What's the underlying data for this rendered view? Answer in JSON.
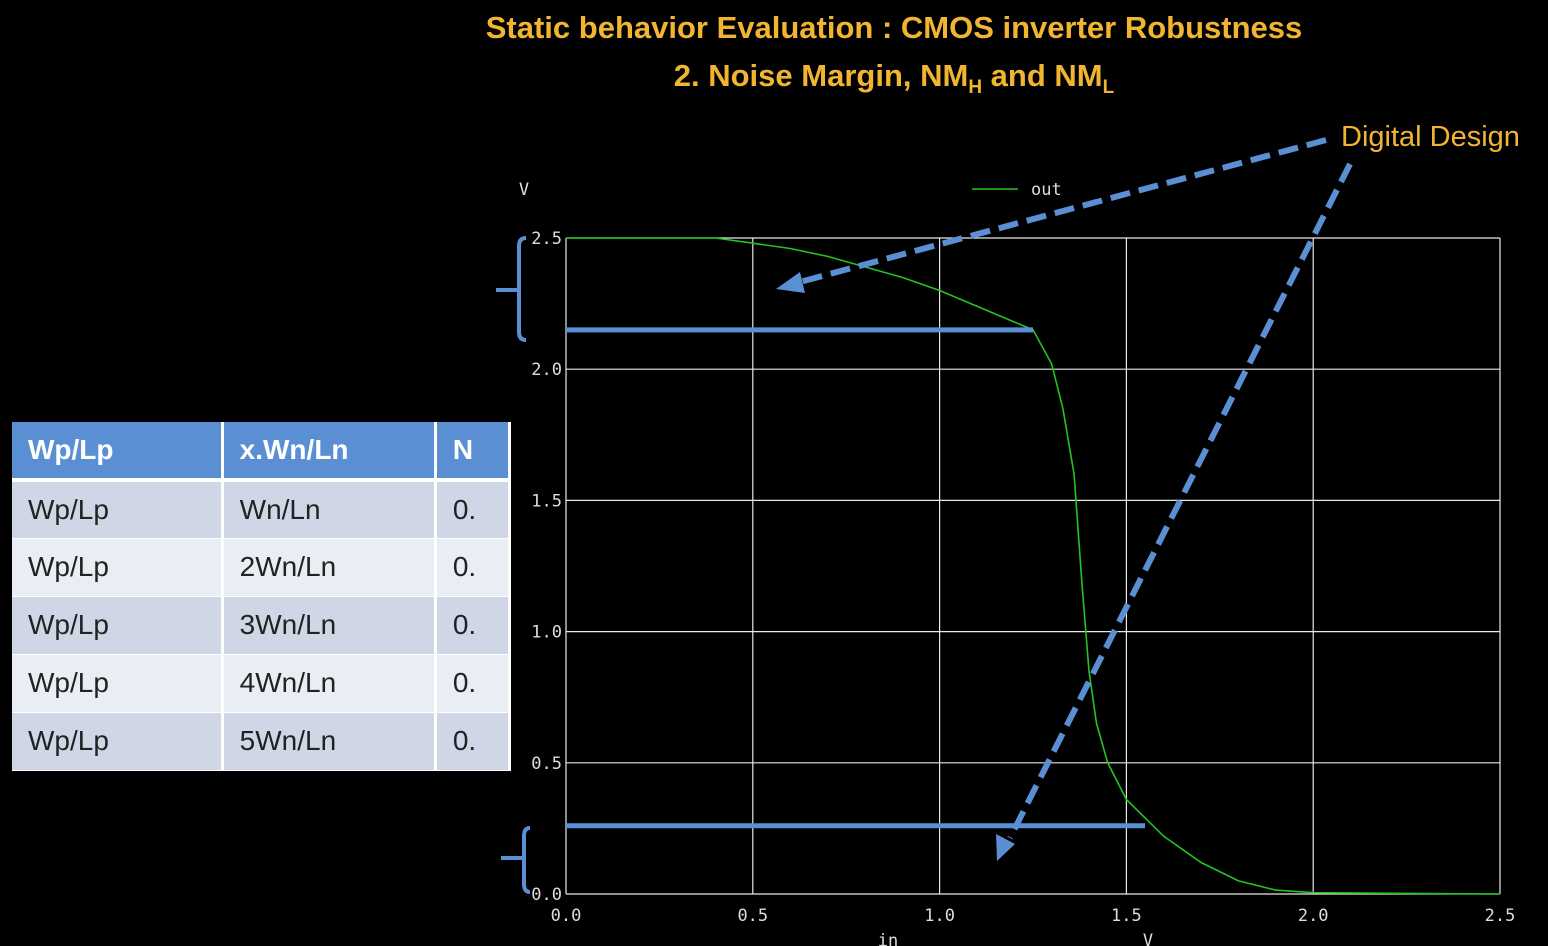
{
  "slide": {
    "title_line1": "Static behavior Evaluation : CMOS inverter Robustness",
    "title_line2_main": "2. Noise Margin, NM",
    "title_line2_sub_h": "H",
    "title_line2_and": " and NM",
    "title_line2_sub_l": "L",
    "digital_design_label": "Digital Design"
  },
  "table": {
    "headers": [
      "Wp/Lp",
      "x.Wn/Ln",
      "N"
    ],
    "rows": [
      [
        "Wp/Lp",
        "Wn/Ln",
        "0."
      ],
      [
        "Wp/Lp",
        "2Wn/Ln",
        "0."
      ],
      [
        "Wp/Lp",
        "3Wn/Ln",
        "0."
      ],
      [
        "Wp/Lp",
        "4Wn/Ln",
        "0."
      ],
      [
        "Wp/Lp",
        "5Wn/Ln",
        "0."
      ]
    ]
  },
  "colors": {
    "title": "#f2b531",
    "curve": "#22c322",
    "annotation": "#5b8fd4",
    "grid": "#e8e8e8"
  },
  "chart_data": {
    "type": "line",
    "y_unit_label": "V",
    "x_axis_label": "in",
    "x_unit_label": "V",
    "xlim": [
      0,
      2.5
    ],
    "ylim": [
      0,
      2.5
    ],
    "x_ticks": [
      "0.0",
      "0.5",
      "1.0",
      "1.5",
      "2.0",
      "2.5"
    ],
    "y_ticks": [
      "0.0",
      "0.5",
      "1.0",
      "1.5",
      "2.0",
      "2.5"
    ],
    "grid": true,
    "legend_position": "top-center",
    "series": [
      {
        "name": "out",
        "x": [
          0,
          0.4,
          0.5,
          0.6,
          0.7,
          0.8,
          0.9,
          1.0,
          1.1,
          1.2,
          1.25,
          1.3,
          1.33,
          1.36,
          1.38,
          1.4,
          1.42,
          1.45,
          1.5,
          1.6,
          1.7,
          1.8,
          1.9,
          2.0,
          2.5
        ],
        "y": [
          2.5,
          2.5,
          2.48,
          2.46,
          2.43,
          2.39,
          2.35,
          2.3,
          2.24,
          2.18,
          2.15,
          2.02,
          1.85,
          1.6,
          1.2,
          0.85,
          0.65,
          0.5,
          0.36,
          0.22,
          0.12,
          0.05,
          0.015,
          0.005,
          0.0
        ]
      }
    ],
    "annotations": {
      "h_line_high": {
        "y": 2.15,
        "x_end": 1.25
      },
      "h_line_low": {
        "y": 0.26,
        "x_end": 1.55
      }
    }
  }
}
